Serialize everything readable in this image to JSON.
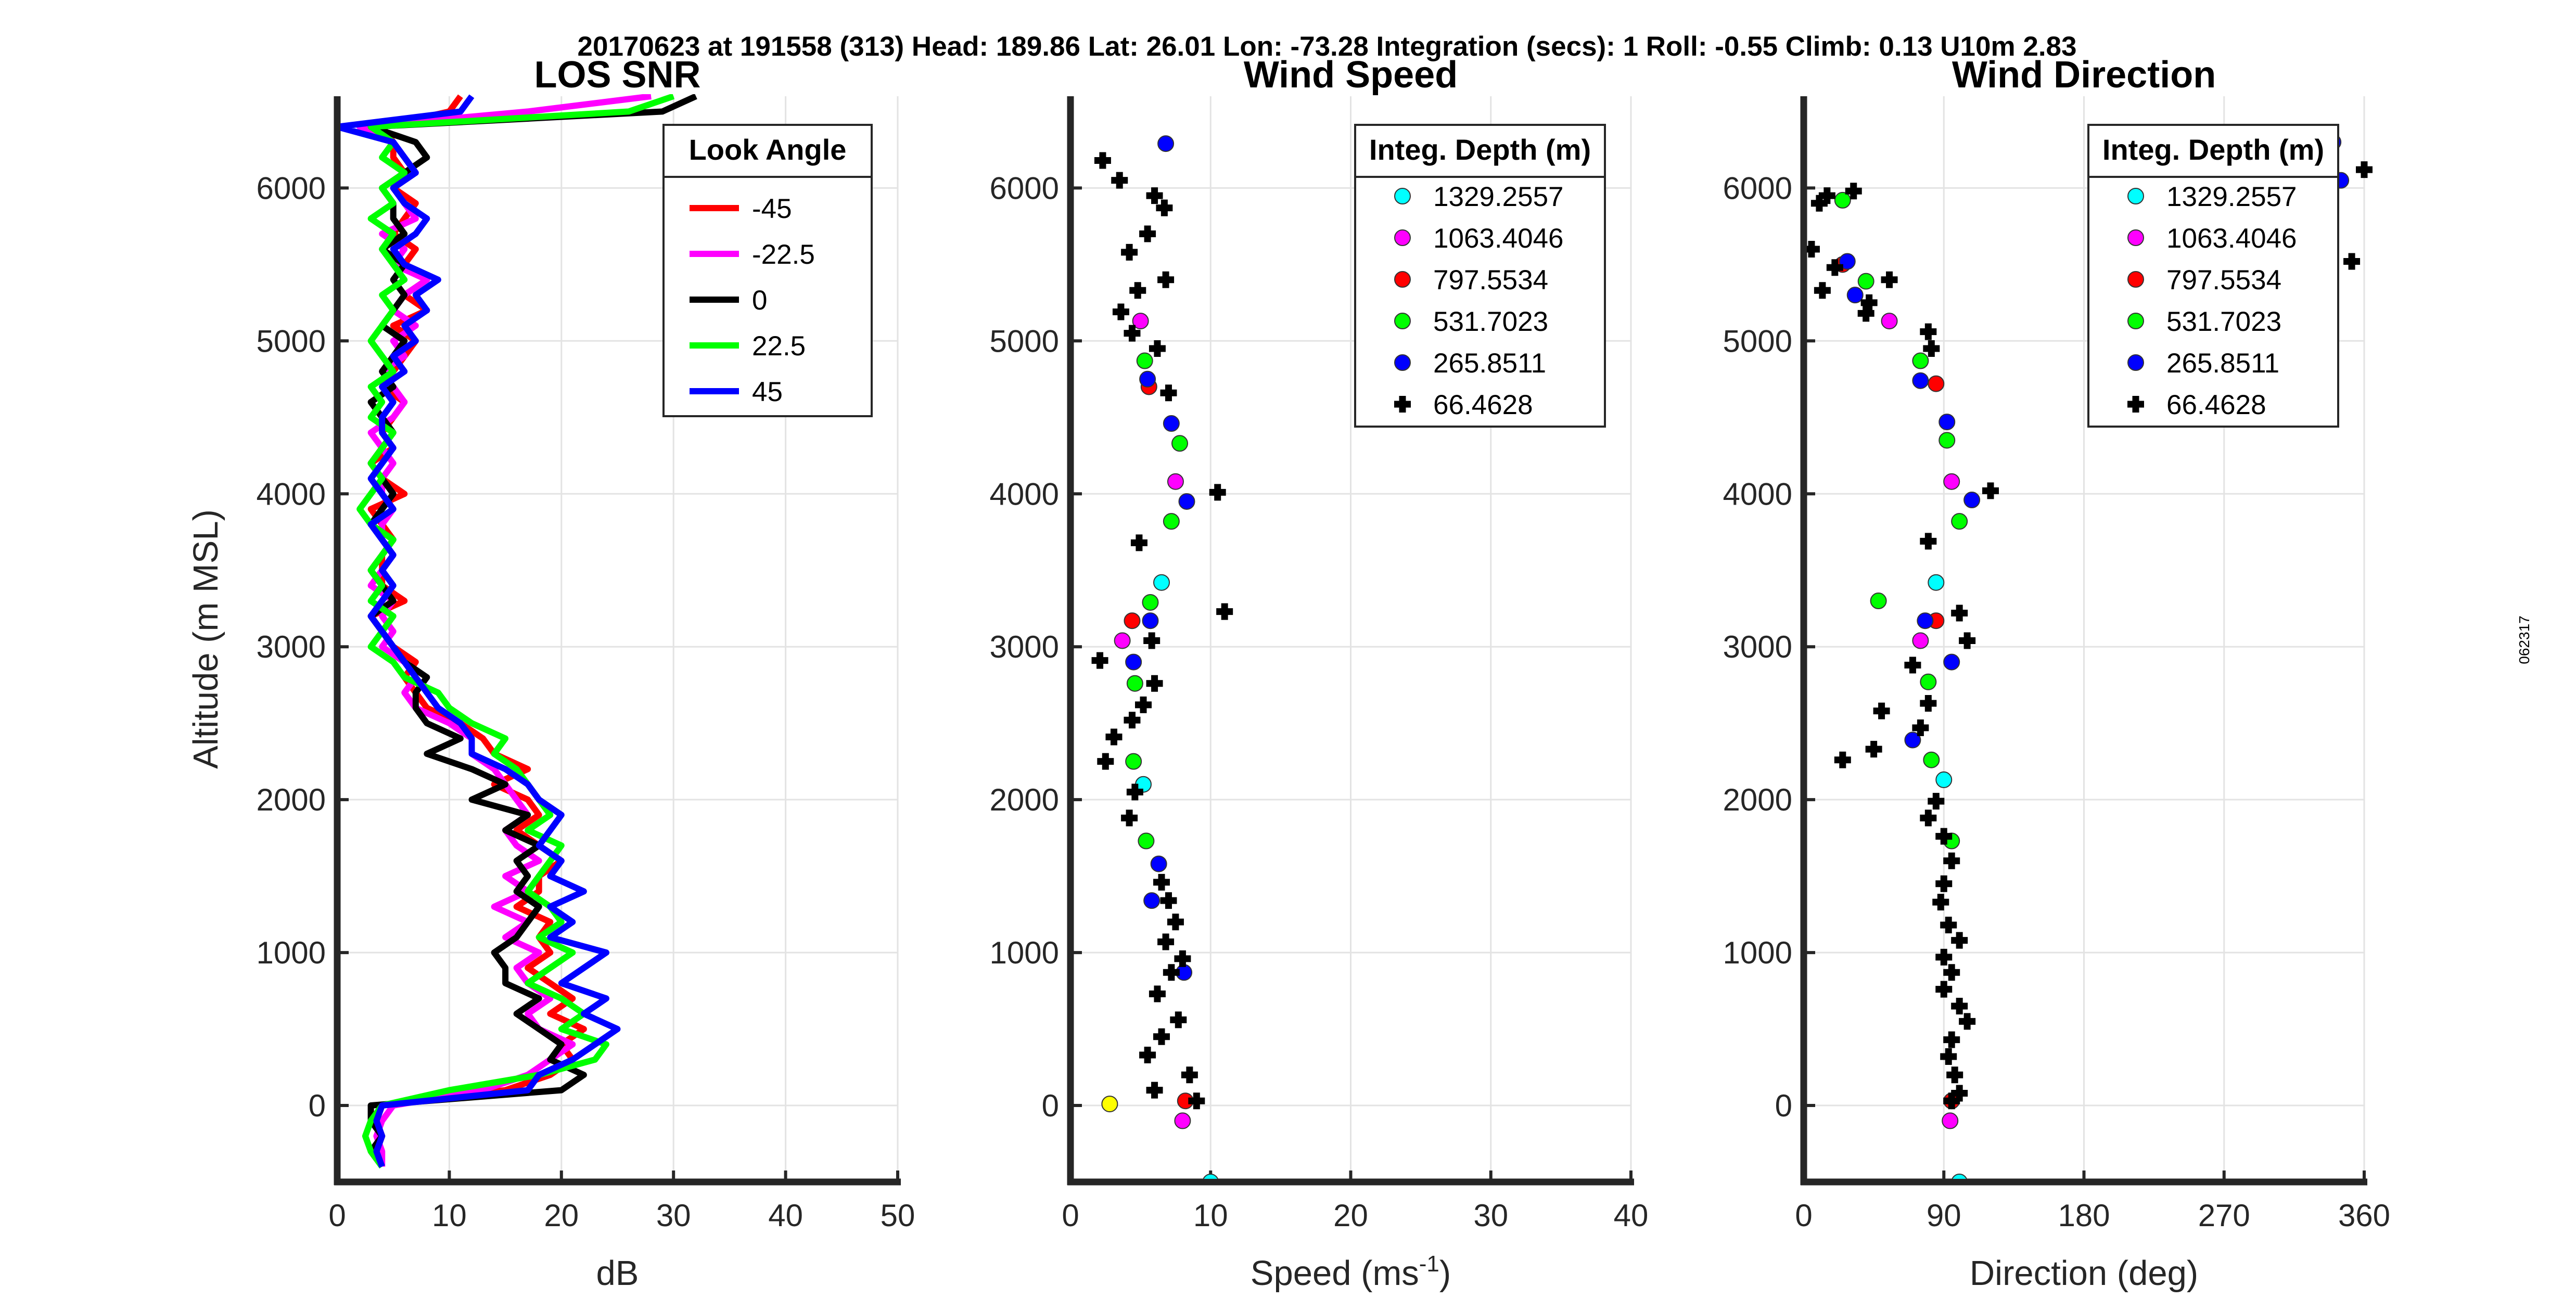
{
  "header": "20170623 at 191558 (313)  Head: 189.86  Lat: 26.01  Lon: -73.28  Integration (secs): 1  Roll: -0.55  Climb: 0.13  U10m 2.83",
  "side_label": "062317",
  "chart_data": [
    {
      "type": "line",
      "title": "LOS SNR",
      "xlabel": "dB",
      "ylabel": "Altitude (m MSL)",
      "xlim": [
        0,
        50
      ],
      "ylim": [
        -500,
        6600
      ],
      "xticks": [
        0,
        10,
        20,
        30,
        40,
        50
      ],
      "yticks": [
        0,
        1000,
        2000,
        3000,
        4000,
        5000,
        6000
      ],
      "grid": true,
      "legend": {
        "title": "Look Angle",
        "placement": "top-right"
      },
      "y": [
        -400,
        -300,
        -200,
        -100,
        0,
        100,
        200,
        300,
        400,
        500,
        600,
        700,
        800,
        900,
        1000,
        1100,
        1200,
        1300,
        1400,
        1500,
        1600,
        1700,
        1800,
        1900,
        2000,
        2100,
        2200,
        2300,
        2400,
        2500,
        2600,
        2700,
        2800,
        2900,
        3000,
        3100,
        3200,
        3300,
        3400,
        3500,
        3600,
        3700,
        3800,
        3900,
        4000,
        4100,
        4200,
        4300,
        4400,
        4500,
        4600,
        4700,
        4800,
        4900,
        5000,
        5100,
        5200,
        5300,
        5400,
        5500,
        5600,
        5700,
        5800,
        5900,
        6000,
        6100,
        6200,
        6300,
        6400,
        6500,
        6600
      ],
      "series": [
        {
          "name": "-45",
          "color": "#ff0000",
          "x": [
            4,
            3.5,
            4,
            3.5,
            4,
            15,
            19,
            21,
            20,
            22,
            19,
            21,
            19,
            17,
            19,
            18,
            19,
            16,
            18,
            18,
            20,
            18,
            16,
            18,
            17,
            14,
            17,
            14,
            13,
            11,
            8,
            7,
            6,
            7,
            5,
            4,
            3,
            6,
            4,
            4,
            4,
            5,
            4,
            3,
            6,
            4,
            3,
            5,
            4,
            5,
            6,
            4,
            5,
            6,
            7,
            5,
            8,
            6,
            8,
            6,
            7,
            5,
            6,
            7,
            5,
            6,
            5,
            5,
            4,
            10,
            11
          ]
        },
        {
          "name": "-22.5",
          "color": "#ff00ff",
          "x": [
            4,
            4,
            3.5,
            4,
            5,
            13,
            17,
            19,
            21,
            18,
            17,
            19,
            17,
            16,
            18,
            15,
            17,
            14,
            17,
            15,
            18,
            16,
            15,
            17,
            16,
            15,
            14,
            12,
            12,
            10,
            7,
            6,
            7,
            6,
            4,
            5,
            4,
            5,
            3,
            4,
            5,
            4,
            4,
            5,
            4,
            4,
            5,
            4,
            3,
            5,
            6,
            5,
            4,
            6,
            5,
            7,
            5,
            6,
            8,
            5,
            6,
            4,
            7,
            6,
            5,
            7,
            6,
            5,
            2,
            17,
            28
          ]
        },
        {
          "name": "0",
          "color": "#000000",
          "x": [
            4,
            3,
            4,
            3,
            3,
            20,
            22,
            19,
            20,
            18,
            16,
            18,
            15,
            15,
            14,
            16,
            17,
            18,
            16,
            17,
            16,
            18,
            15,
            17,
            12,
            15,
            12,
            8,
            11,
            8,
            7,
            7,
            8,
            6,
            5,
            4,
            3,
            5,
            4,
            3,
            4,
            5,
            3,
            4,
            5,
            4,
            3,
            4,
            5,
            4,
            3,
            5,
            4,
            5,
            6,
            4,
            5,
            6,
            5,
            6,
            4,
            6,
            5,
            5,
            4,
            6,
            8,
            7,
            3,
            29,
            32
          ]
        },
        {
          "name": "22.5",
          "color": "#00ff00",
          "x": [
            4,
            3,
            2.5,
            3,
            4,
            10,
            18,
            23,
            24,
            20,
            22,
            20,
            17,
            19,
            21,
            18,
            20,
            19,
            17,
            18,
            19,
            20,
            17,
            19,
            18,
            17,
            16,
            14,
            15,
            12,
            10,
            9,
            6,
            5,
            3,
            4,
            5,
            3,
            4,
            3,
            4,
            5,
            3,
            2,
            3,
            4,
            3,
            4,
            5,
            3,
            4,
            3,
            5,
            4,
            3,
            4,
            5,
            4,
            6,
            5,
            4,
            5,
            3,
            5,
            4,
            6,
            4,
            5,
            3,
            26,
            30
          ]
        },
        {
          "name": "45",
          "color": "#0000ff",
          "x": [
            4,
            3.5,
            4,
            3.5,
            4,
            17,
            18,
            21,
            23,
            25,
            22,
            24,
            20,
            22,
            24,
            19,
            21,
            19,
            22,
            19,
            20,
            18,
            19,
            20,
            18,
            17,
            15,
            12,
            12,
            11,
            9,
            8,
            7,
            6,
            5,
            4,
            3,
            4,
            5,
            4,
            5,
            4,
            3,
            5,
            4,
            3,
            4,
            5,
            4,
            4,
            5,
            4,
            6,
            5,
            7,
            6,
            8,
            7,
            9,
            6,
            5,
            7,
            8,
            6,
            5,
            7,
            6,
            5,
            0,
            11,
            12
          ]
        }
      ]
    },
    {
      "type": "scatter",
      "title": "Wind Speed",
      "xlabel": "Speed (ms",
      "xlabel_sup": "-1",
      "xlabel_tail": ")",
      "xlim": [
        0,
        40
      ],
      "ylim": [
        -500,
        6600
      ],
      "xticks": [
        0,
        10,
        20,
        30,
        40
      ],
      "yticks": [
        0,
        1000,
        2000,
        3000,
        4000,
        5000,
        6000
      ],
      "grid": true,
      "legend": {
        "title": "Integ. Depth (m)",
        "placement": "top-right"
      },
      "series": [
        {
          "name": "1329.2557",
          "color": "#00ffff",
          "marker": "circle",
          "points": [
            [
              10,
              -500
            ],
            [
              6.5,
              3420
            ],
            [
              5.2,
              2100
            ]
          ]
        },
        {
          "name": "1063.4046",
          "color": "#ff00ff",
          "marker": "circle",
          "points": [
            [
              7.5,
              4080
            ],
            [
              3.7,
              3040
            ],
            [
              8,
              -100
            ],
            [
              5,
              5130
            ]
          ]
        },
        {
          "name": "797.5534",
          "color": "#ff0000",
          "marker": "circle",
          "points": [
            [
              4.4,
              3170
            ],
            [
              8.2,
              30
            ],
            [
              5.6,
              4700
            ]
          ]
        },
        {
          "name": "531.7023",
          "color": "#00ff00",
          "marker": "circle",
          "points": [
            [
              7.2,
              3820
            ],
            [
              7.8,
              4330
            ],
            [
              5.3,
              4870
            ],
            [
              5.7,
              3290
            ],
            [
              4.6,
              2760
            ],
            [
              4.5,
              2250
            ],
            [
              5.4,
              1730
            ]
          ]
        },
        {
          "name": "265.8511",
          "color": "#0000ff",
          "marker": "circle",
          "points": [
            [
              6.8,
              6290
            ],
            [
              8.3,
              3950
            ],
            [
              7.2,
              4460
            ],
            [
              5.5,
              4750
            ],
            [
              5.7,
              3170
            ],
            [
              4.5,
              2900
            ],
            [
              6.3,
              1580
            ],
            [
              5.8,
              1340
            ],
            [
              8.1,
              870
            ]
          ]
        },
        {
          "name": "66.4628",
          "color": "#000000",
          "marker": "plus",
          "points": [
            [
              2.3,
              6180
            ],
            [
              3.5,
              6050
            ],
            [
              6,
              5950
            ],
            [
              6.7,
              5870
            ],
            [
              5.5,
              5700
            ],
            [
              4.2,
              5580
            ],
            [
              6.8,
              5400
            ],
            [
              4.8,
              5330
            ],
            [
              3.6,
              5190
            ],
            [
              4.4,
              5050
            ],
            [
              6.2,
              4950
            ],
            [
              7,
              4660
            ],
            [
              4.9,
              3680
            ],
            [
              10.5,
              4010
            ],
            [
              11,
              3230
            ],
            [
              5.8,
              3040
            ],
            [
              2.1,
              2910
            ],
            [
              6,
              2760
            ],
            [
              5.2,
              2620
            ],
            [
              4.4,
              2520
            ],
            [
              3.1,
              2410
            ],
            [
              2.5,
              2250
            ],
            [
              4.6,
              2050
            ],
            [
              4.2,
              1880
            ],
            [
              6.5,
              1460
            ],
            [
              7,
              1340
            ],
            [
              7.5,
              1200
            ],
            [
              6.8,
              1070
            ],
            [
              8,
              960
            ],
            [
              7.2,
              870
            ],
            [
              6.2,
              730
            ],
            [
              7.7,
              560
            ],
            [
              6.5,
              450
            ],
            [
              5.5,
              330
            ],
            [
              8.5,
              200
            ],
            [
              6,
              100
            ],
            [
              9,
              30
            ]
          ]
        },
        {
          "name": "",
          "color": "#ffff00",
          "marker": "circle",
          "points": [
            [
              2.8,
              10
            ]
          ]
        }
      ]
    },
    {
      "type": "scatter",
      "title": "Wind Direction",
      "xlabel": "Direction (deg)",
      "xlim": [
        0,
        360
      ],
      "ylim": [
        -500,
        6600
      ],
      "xticks": [
        0,
        90,
        180,
        270,
        360
      ],
      "yticks": [
        0,
        1000,
        2000,
        3000,
        4000,
        5000,
        6000
      ],
      "grid": true,
      "legend": {
        "title": "Integ. Depth (m)",
        "placement": "top-right"
      },
      "series": [
        {
          "name": "1329.2557",
          "color": "#00ffff",
          "marker": "circle",
          "points": [
            [
              100,
              -500
            ],
            [
              85,
              3420
            ],
            [
              90,
              2130
            ]
          ]
        },
        {
          "name": "1063.4046",
          "color": "#ff00ff",
          "marker": "circle",
          "points": [
            [
              95,
              4080
            ],
            [
              75,
              3040
            ],
            [
              94,
              -100
            ],
            [
              55,
              5130
            ]
          ]
        },
        {
          "name": "797.5534",
          "color": "#ff0000",
          "marker": "circle",
          "points": [
            [
              85,
              3170
            ],
            [
              95,
              30
            ],
            [
              85,
              4720
            ],
            [
              25,
              5500
            ]
          ]
        },
        {
          "name": "531.7023",
          "color": "#00ff00",
          "marker": "circle",
          "points": [
            [
              100,
              3820
            ],
            [
              92,
              4350
            ],
            [
              75,
              4870
            ],
            [
              48,
              3300
            ],
            [
              80,
              2770
            ],
            [
              82,
              2260
            ],
            [
              95,
              1730
            ],
            [
              40,
              5390
            ],
            [
              25,
              5920
            ]
          ]
        },
        {
          "name": "265.8511",
          "color": "#0000ff",
          "marker": "circle",
          "points": [
            [
              340,
              6300
            ],
            [
              108,
              3960
            ],
            [
              92,
              4470
            ],
            [
              75,
              4740
            ],
            [
              78,
              3170
            ],
            [
              95,
              2900
            ],
            [
              70,
              2390
            ],
            [
              28,
              5520
            ],
            [
              33,
              5300
            ],
            [
              345,
              6050
            ]
          ]
        },
        {
          "name": "66.4628",
          "color": "#000000",
          "marker": "plus",
          "points": [
            [
              15,
              5950
            ],
            [
              32,
              5980
            ],
            [
              10,
              5900
            ],
            [
              5,
              5600
            ],
            [
              20,
              5480
            ],
            [
              12,
              5330
            ],
            [
              42,
              5250
            ],
            [
              55,
              5400
            ],
            [
              40,
              5180
            ],
            [
              80,
              5060
            ],
            [
              82,
              4950
            ],
            [
              120,
              4020
            ],
            [
              80,
              3690
            ],
            [
              100,
              3220
            ],
            [
              105,
              3040
            ],
            [
              70,
              2880
            ],
            [
              80,
              2630
            ],
            [
              75,
              2470
            ],
            [
              50,
              2580
            ],
            [
              25,
              2260
            ],
            [
              45,
              2330
            ],
            [
              85,
              1990
            ],
            [
              80,
              1880
            ],
            [
              90,
              1760
            ],
            [
              95,
              1600
            ],
            [
              90,
              1450
            ],
            [
              88,
              1330
            ],
            [
              93,
              1180
            ],
            [
              100,
              1080
            ],
            [
              90,
              970
            ],
            [
              95,
              870
            ],
            [
              90,
              760
            ],
            [
              100,
              650
            ],
            [
              105,
              550
            ],
            [
              95,
              430
            ],
            [
              93,
              320
            ],
            [
              97,
              200
            ],
            [
              100,
              80
            ],
            [
              95,
              30
            ],
            [
              360,
              6120
            ],
            [
              352,
              5520
            ]
          ]
        }
      ]
    }
  ]
}
